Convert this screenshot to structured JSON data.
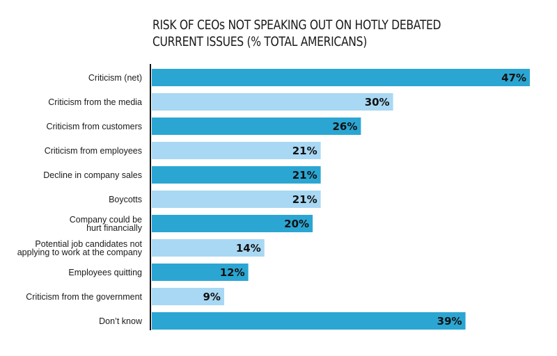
{
  "chart_data": {
    "type": "bar",
    "orientation": "horizontal",
    "title_lines": [
      "RISK OF CEOs NOT SPEAKING OUT ON HOTLY DEBATED",
      "CURRENT ISSUES (% TOTAL AMERICANS)"
    ],
    "categories": [
      [
        "Criticism (net)"
      ],
      [
        "Criticism from the media"
      ],
      [
        "Criticism from customers"
      ],
      [
        "Criticism from employees"
      ],
      [
        "Decline in company sales"
      ],
      [
        "Boycotts"
      ],
      [
        "Company could be",
        "hurt financially"
      ],
      [
        "Potential job candidates not",
        "applying to work at the company"
      ],
      [
        "Employees quitting"
      ],
      [
        "Criticism from the government"
      ],
      [
        "Don’t know"
      ]
    ],
    "values": [
      47,
      30,
      26,
      21,
      21,
      21,
      20,
      14,
      12,
      9,
      39
    ],
    "value_labels": [
      "47%",
      "30%",
      "26%",
      "21%",
      "21%",
      "21%",
      "20%",
      "14%",
      "12%",
      "9%",
      "39%"
    ],
    "xlim": [
      0,
      47
    ],
    "grid": false,
    "colors": {
      "dark": "#2ba6d3",
      "light": "#a8d8f3",
      "axis": "#111111"
    },
    "bar_shades": [
      "dark",
      "light",
      "dark",
      "light",
      "dark",
      "light",
      "dark",
      "light",
      "dark",
      "light",
      "dark"
    ]
  }
}
